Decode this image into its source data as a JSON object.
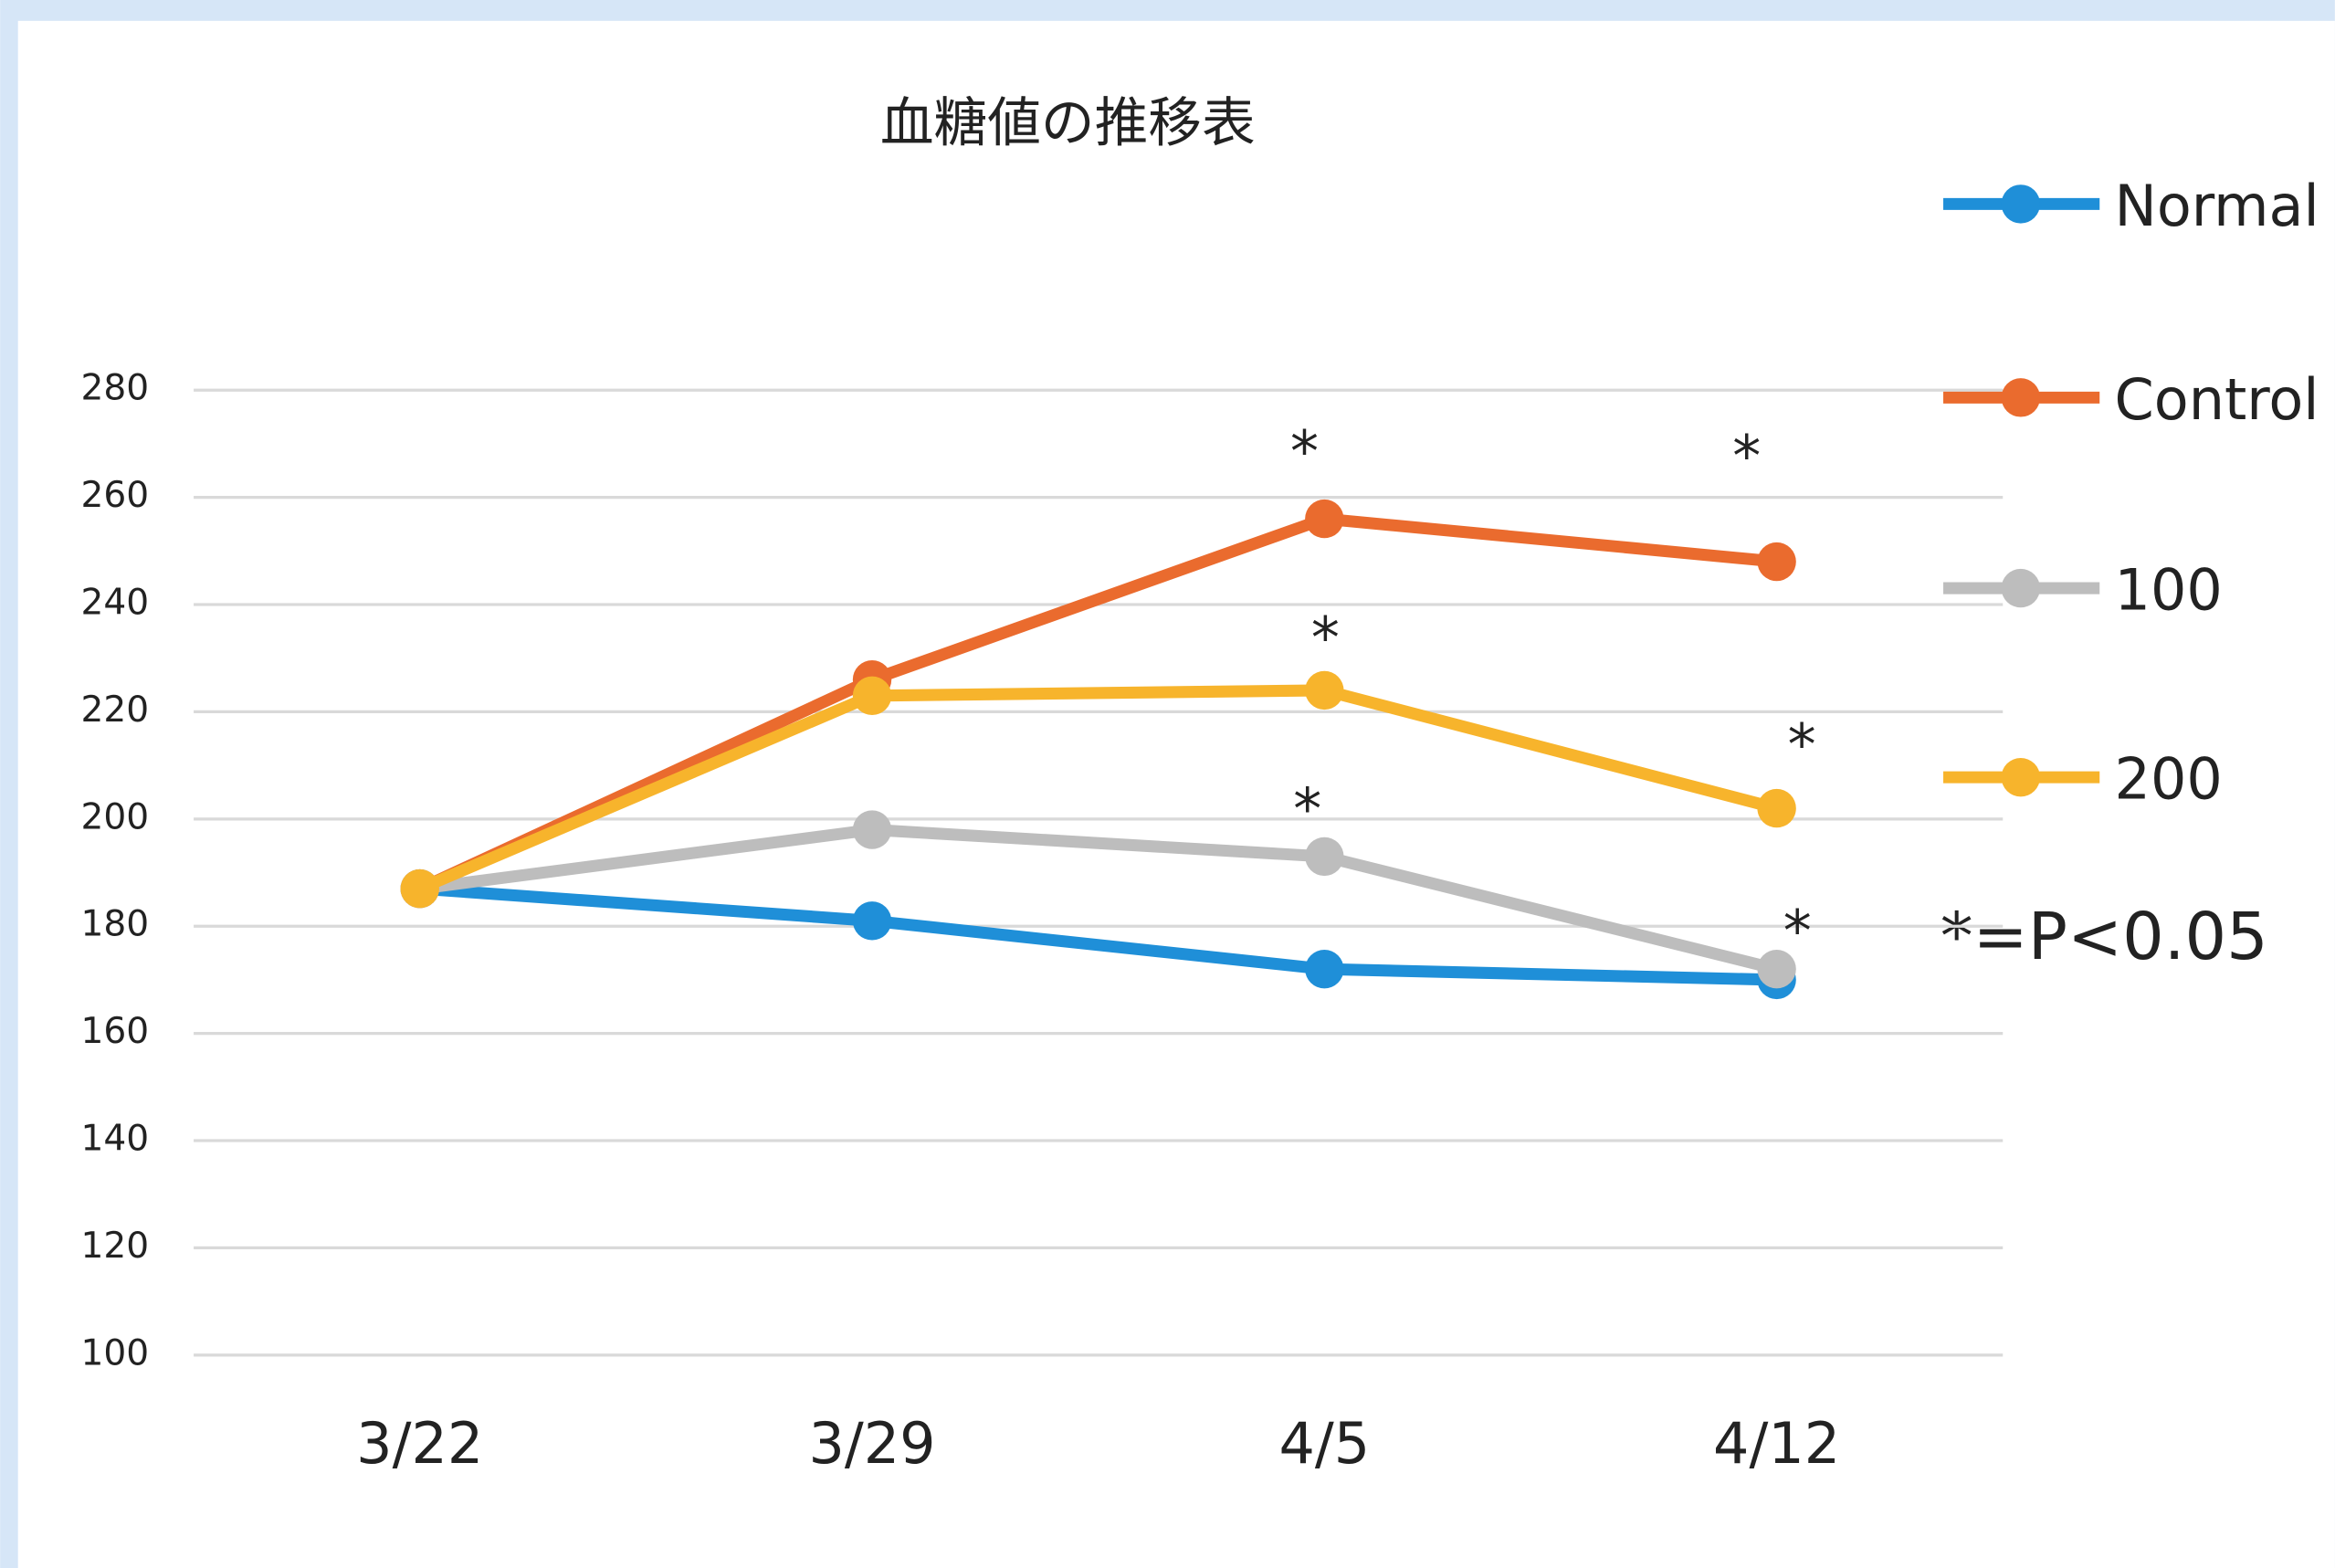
{
  "chart_data": {
    "type": "line",
    "title": "血糖値の推移表",
    "categories": [
      "3/22",
      "3/29",
      "4/5",
      "4/12"
    ],
    "series": [
      {
        "name": "Normal",
        "color": "#1f8fd8",
        "values": [
          187,
          181,
          172,
          170
        ]
      },
      {
        "name": "Control",
        "color": "#ea6b2e",
        "values": [
          187,
          226,
          256,
          248
        ]
      },
      {
        "name": "100",
        "color": "#bdbdbd",
        "values": [
          187,
          198,
          193,
          172
        ]
      },
      {
        "name": "200",
        "color": "#f7b42c",
        "values": [
          187,
          223,
          224,
          202
        ]
      }
    ],
    "ylim": [
      100,
      280
    ],
    "yticks": [
      100,
      120,
      140,
      160,
      180,
      200,
      220,
      240,
      260,
      280
    ],
    "grid": true,
    "annotations": [
      "*",
      "*",
      "*",
      "*",
      "*",
      "*"
    ],
    "note": "*=P<0.05",
    "legend": "right"
  }
}
